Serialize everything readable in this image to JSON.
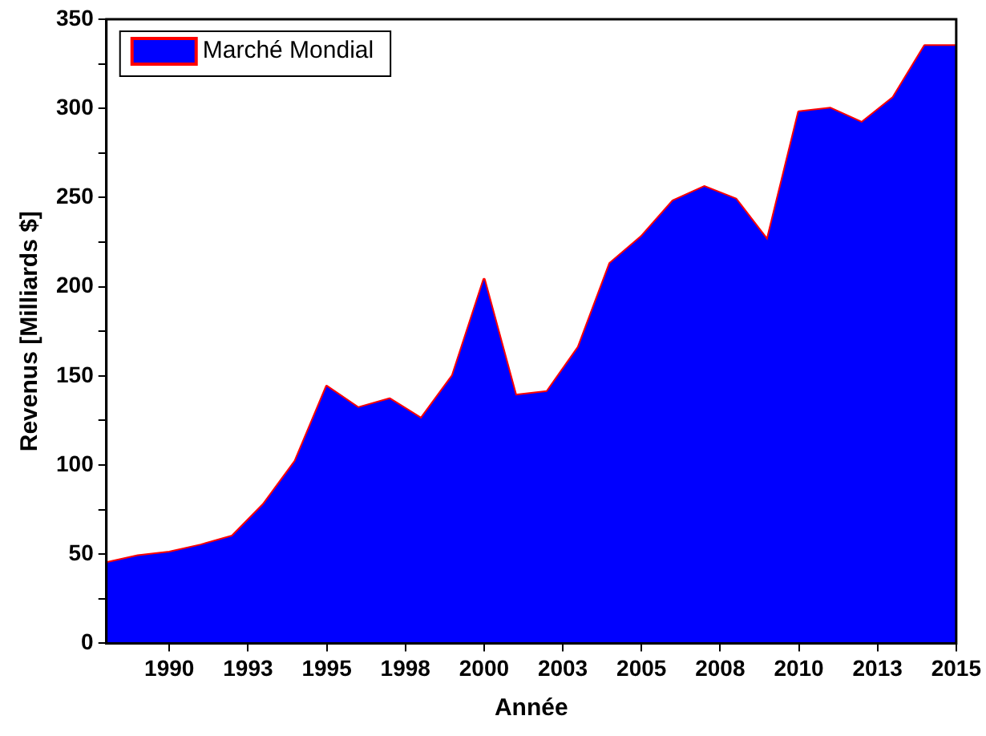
{
  "chart_data": {
    "type": "area",
    "xlabel": "Année",
    "ylabel": "Revenus [Milliards $]",
    "x": [
      1988,
      1989,
      1990,
      1991,
      1992,
      1993,
      1994,
      1995,
      1996,
      1997,
      1998,
      1999,
      2000,
      2001,
      2002,
      2003,
      2004,
      2005,
      2006,
      2007,
      2008,
      2009,
      2010,
      2011,
      2012,
      2013,
      2014,
      2015
    ],
    "series": [
      {
        "name": "Marché Mondial",
        "color": "#0000ff",
        "values": [
          45,
          49,
          51,
          55,
          60,
          78,
          102,
          144,
          132,
          137,
          126,
          150,
          204,
          139,
          141,
          166,
          213,
          228,
          248,
          256,
          249,
          226,
          298,
          300,
          292,
          306,
          335,
          335
        ]
      },
      {
        "type": "line",
        "color": "#ff0000",
        "values": [
          45,
          49,
          51,
          55,
          60,
          78,
          102,
          144,
          132,
          137,
          126,
          150,
          204,
          139,
          141,
          166,
          213,
          228,
          248,
          256,
          249,
          226,
          298,
          300,
          292,
          306,
          335,
          335
        ]
      }
    ],
    "xlim": [
      1988,
      2015
    ],
    "xticks": [
      1990,
      {
        "value": 1992.5,
        "label": "1993"
      },
      1995,
      {
        "value": 1997.5,
        "label": "1998"
      },
      2000,
      {
        "value": 2002.5,
        "label": "2003"
      },
      2005,
      {
        "value": 2007.5,
        "label": "2008"
      },
      2010,
      {
        "value": 2012.5,
        "label": "2013"
      },
      2015
    ],
    "ylim": [
      0,
      350
    ],
    "yticks": [
      0,
      {
        "value": 25,
        "label": null
      },
      50,
      {
        "value": 75,
        "label": null
      },
      100,
      {
        "value": 125,
        "label": null
      },
      150,
      {
        "value": 175,
        "label": null
      },
      200,
      {
        "value": 225,
        "label": null
      },
      250,
      {
        "value": 275,
        "label": null
      },
      300,
      {
        "value": 325,
        "label": null
      },
      350
    ],
    "legend": "top left",
    "grid": false
  }
}
